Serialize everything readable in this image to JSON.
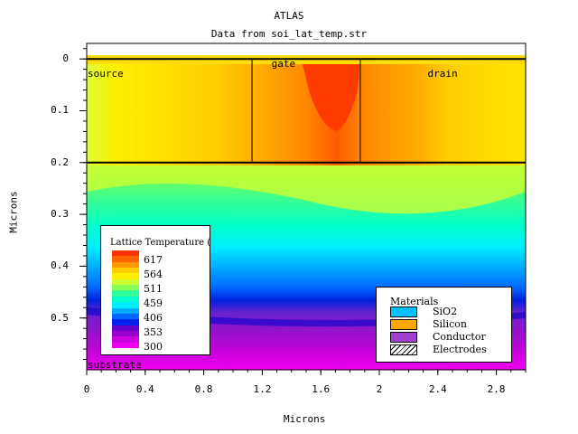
{
  "header": {
    "title": "ATLAS",
    "subtitle": "Data from soi_lat_temp.str"
  },
  "axes": {
    "xlabel": "Microns",
    "ylabel": "Microns"
  },
  "chart_data": {
    "type": "heatmap",
    "title": "ATLAS",
    "subtitle": "Data from soi_lat_temp.str",
    "xlabel": "Microns",
    "ylabel": "Microns",
    "xlim": [
      0,
      3
    ],
    "ylim": [
      0.6,
      -0.03
    ],
    "x_ticks": [
      "0",
      "0.4",
      "0.8",
      "1.2",
      "1.6",
      "2",
      "2.4",
      "2.8"
    ],
    "y_ticks": [
      "0",
      "0.1",
      "0.2",
      "0.3",
      "0.4",
      "0.5"
    ],
    "grid": false,
    "peak_temperature_location": {
      "x": 1.7,
      "y": 0.13
    },
    "regions": [
      {
        "label": "source",
        "x": 0.0
      },
      {
        "label": "gate",
        "x": 1.3
      },
      {
        "label": "drain",
        "x": 2.4
      },
      {
        "label": "substrate",
        "x": 0.0
      }
    ],
    "interfaces_y": [
      0,
      0.2
    ],
    "gate_edges_x": [
      1.13,
      1.87
    ],
    "colorbar": {
      "title": "Lattice Temperature (K",
      "labels": [
        "617",
        "564",
        "511",
        "459",
        "406",
        "353",
        "300"
      ],
      "colors": [
        "#ff3300",
        "#ff6600",
        "#ff9900",
        "#ffcc00",
        "#ffee00",
        "#ccff33",
        "#88ff55",
        "#33ff99",
        "#00ffcc",
        "#00eeff",
        "#00aaff",
        "#0066ff",
        "#0022ee",
        "#6600cc",
        "#9900cc",
        "#cc00dd",
        "#ee00ee"
      ]
    }
  },
  "materials_legend": {
    "title": "Materials",
    "items": [
      {
        "label": "SiO2",
        "color": "#00c0ff"
      },
      {
        "label": "Silicon",
        "color": "#ffa500"
      },
      {
        "label": "Conductor",
        "color": "#a040d0"
      },
      {
        "label": "Electrodes",
        "color": "hatch"
      }
    ]
  }
}
